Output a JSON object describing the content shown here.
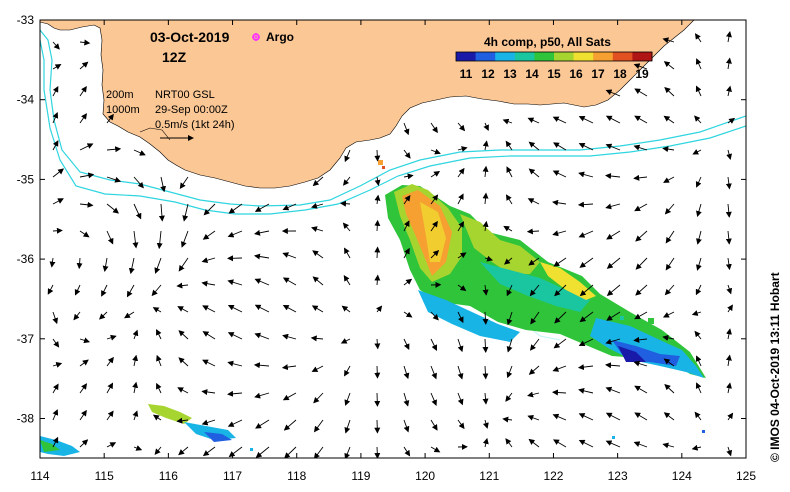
{
  "header": {
    "date": "03-Oct-2019",
    "time": "12Z",
    "argo_label": "Argo"
  },
  "colorbar": {
    "title": "4h comp, p50, All Sats",
    "ticks": [
      "11",
      "12",
      "13",
      "14",
      "15",
      "16",
      "17",
      "18",
      "19"
    ],
    "colors": [
      "#1a1aa8",
      "#1f5fe0",
      "#19b4e6",
      "#1ac6a0",
      "#2fc43a",
      "#a7d530",
      "#f0e030",
      "#f5a030",
      "#e05020",
      "#b01515"
    ]
  },
  "legend": {
    "isobath_200": "200m",
    "isobath_1000": "1000m",
    "current_source": "NRT00 GSL",
    "current_date": "29-Sep 00:00Z",
    "scale_label": "0.5m/s (1kt 24h)"
  },
  "axes": {
    "x_ticks": [
      "114",
      "115",
      "116",
      "117",
      "118",
      "119",
      "120",
      "121",
      "122",
      "123",
      "124",
      "125"
    ],
    "y_ticks": [
      "-33",
      "-34",
      "-35",
      "-36",
      "-37",
      "-38"
    ]
  },
  "credit": "© IMOS 04-Oct-2019 13:11 Hobart",
  "colors": {
    "land": "#fbc795",
    "isobath": "#2fd5df",
    "argo": "#ff2cff"
  }
}
